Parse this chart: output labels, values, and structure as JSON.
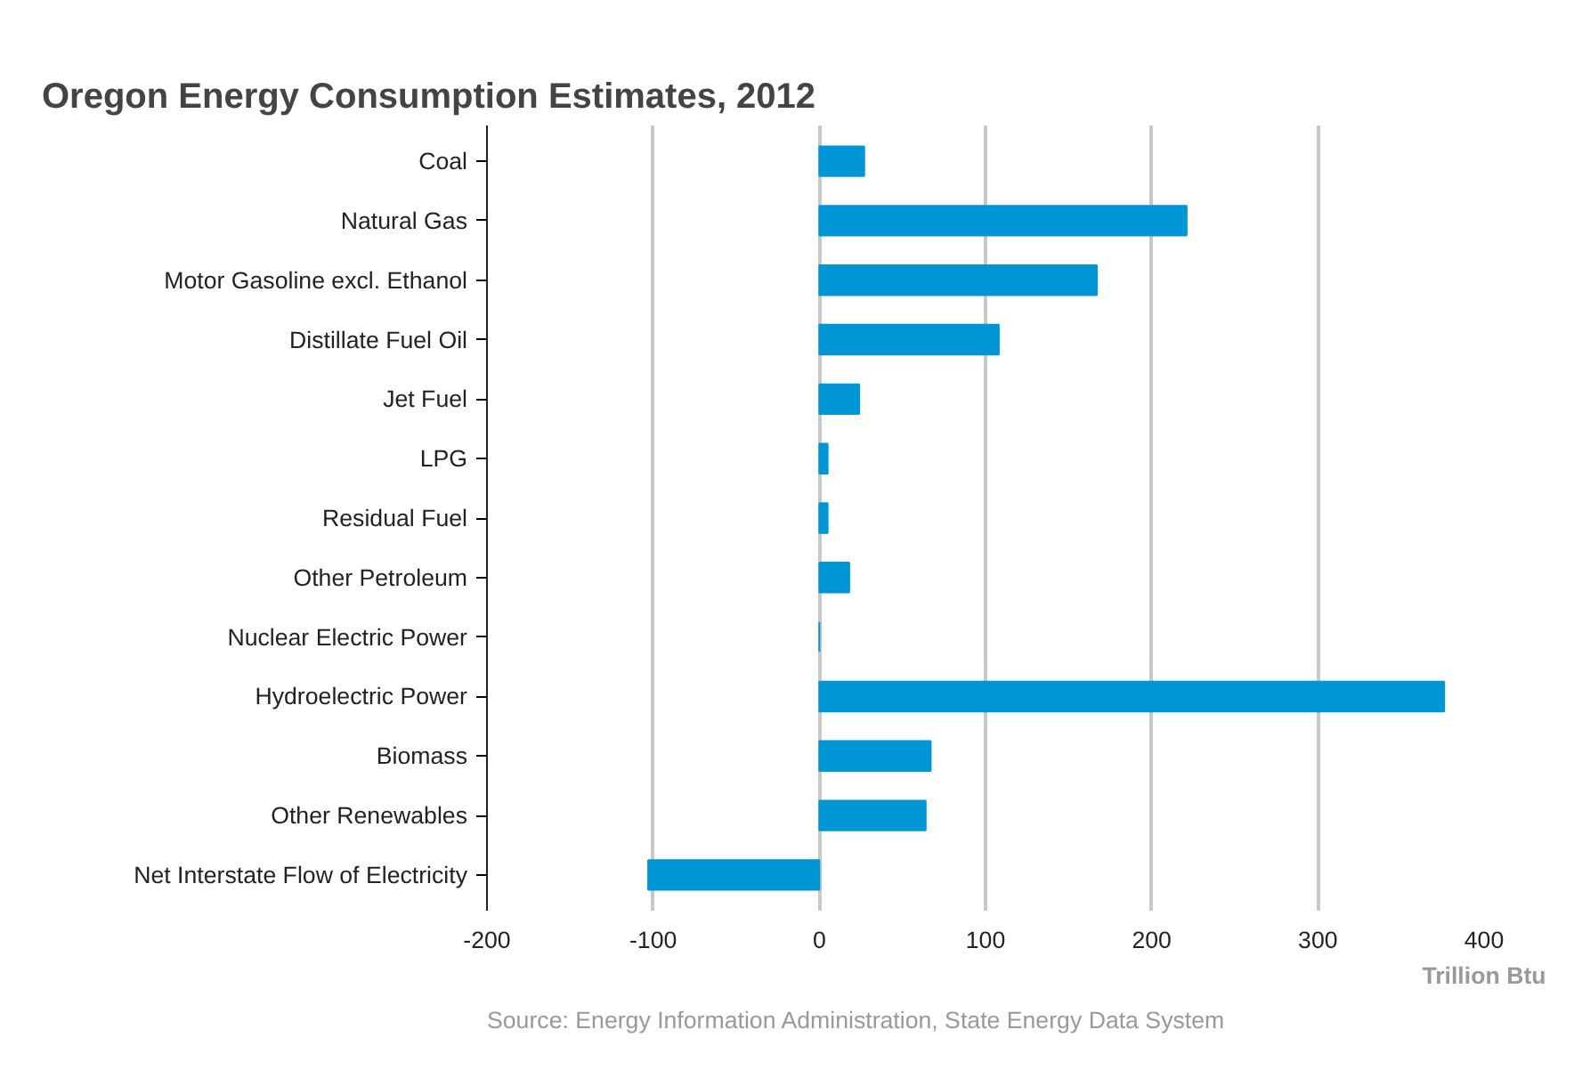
{
  "chart_data": {
    "type": "bar",
    "orientation": "horizontal",
    "title": "Oregon Energy Consumption Estimates, 2012",
    "categories": [
      "Coal",
      "Natural Gas",
      "Motor Gasoline excl. Ethanol",
      "Distillate Fuel Oil",
      "Jet Fuel",
      "LPG",
      "Residual Fuel",
      "Other Petroleum",
      "Nuclear Electric Power",
      "Hydroelectric Power",
      "Biomass",
      "Other Renewables",
      "Net Interstate Flow of Electricity"
    ],
    "values": [
      27,
      221,
      167,
      108,
      24,
      5,
      5,
      18,
      0,
      376,
      67,
      64,
      -103
    ],
    "color": "#0096d6",
    "xlim": [
      -200,
      400
    ],
    "xticks": [
      -200,
      -100,
      0,
      100,
      200,
      300,
      400
    ],
    "xlabel": "Trillion Btu",
    "grid": "x",
    "annotations": [
      "Source: Energy Information Administration, State Energy Data System"
    ]
  }
}
